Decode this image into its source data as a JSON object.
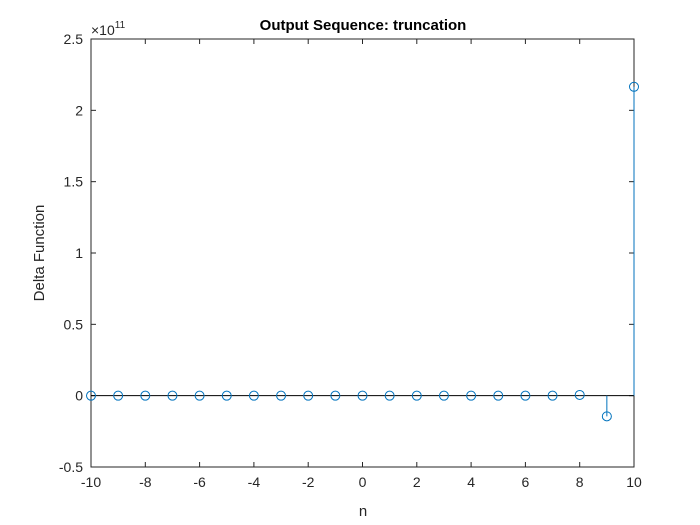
{
  "chart_data": {
    "type": "stem",
    "title": "Output Sequence: truncation",
    "xlabel": "n",
    "ylabel": "Delta Function",
    "xlim": [
      -10,
      10
    ],
    "ylim": [
      -0.5,
      2.5
    ],
    "y_exponent_label": {
      "base": "×10",
      "exponent": "11"
    },
    "x_ticks": [
      -10,
      -8,
      -6,
      -4,
      -2,
      0,
      2,
      4,
      6,
      8,
      10
    ],
    "x_tick_labels": [
      "-10",
      "-8",
      "-6",
      "-4",
      "-2",
      "0",
      "2",
      "4",
      "6",
      "8",
      "10"
    ],
    "y_ticks": [
      -0.5,
      0,
      0.5,
      1,
      1.5,
      2,
      2.5
    ],
    "y_tick_labels": [
      "-0.5",
      "0",
      "0.5",
      "1",
      "1.5",
      "2",
      "2.5"
    ],
    "grid": false,
    "series": [
      {
        "x": [
          -10,
          -9,
          -8,
          -7,
          -6,
          -5,
          -4,
          -3,
          -2,
          -1,
          0,
          1,
          2,
          3,
          4,
          5,
          6,
          7,
          8,
          9,
          10
        ],
        "y": [
          0,
          0,
          0,
          0,
          0,
          0,
          0,
          0,
          0,
          0,
          0,
          0,
          0,
          0,
          0,
          0,
          0,
          0,
          0.005,
          -0.145,
          2.165
        ],
        "color": "#0072BD"
      }
    ]
  }
}
